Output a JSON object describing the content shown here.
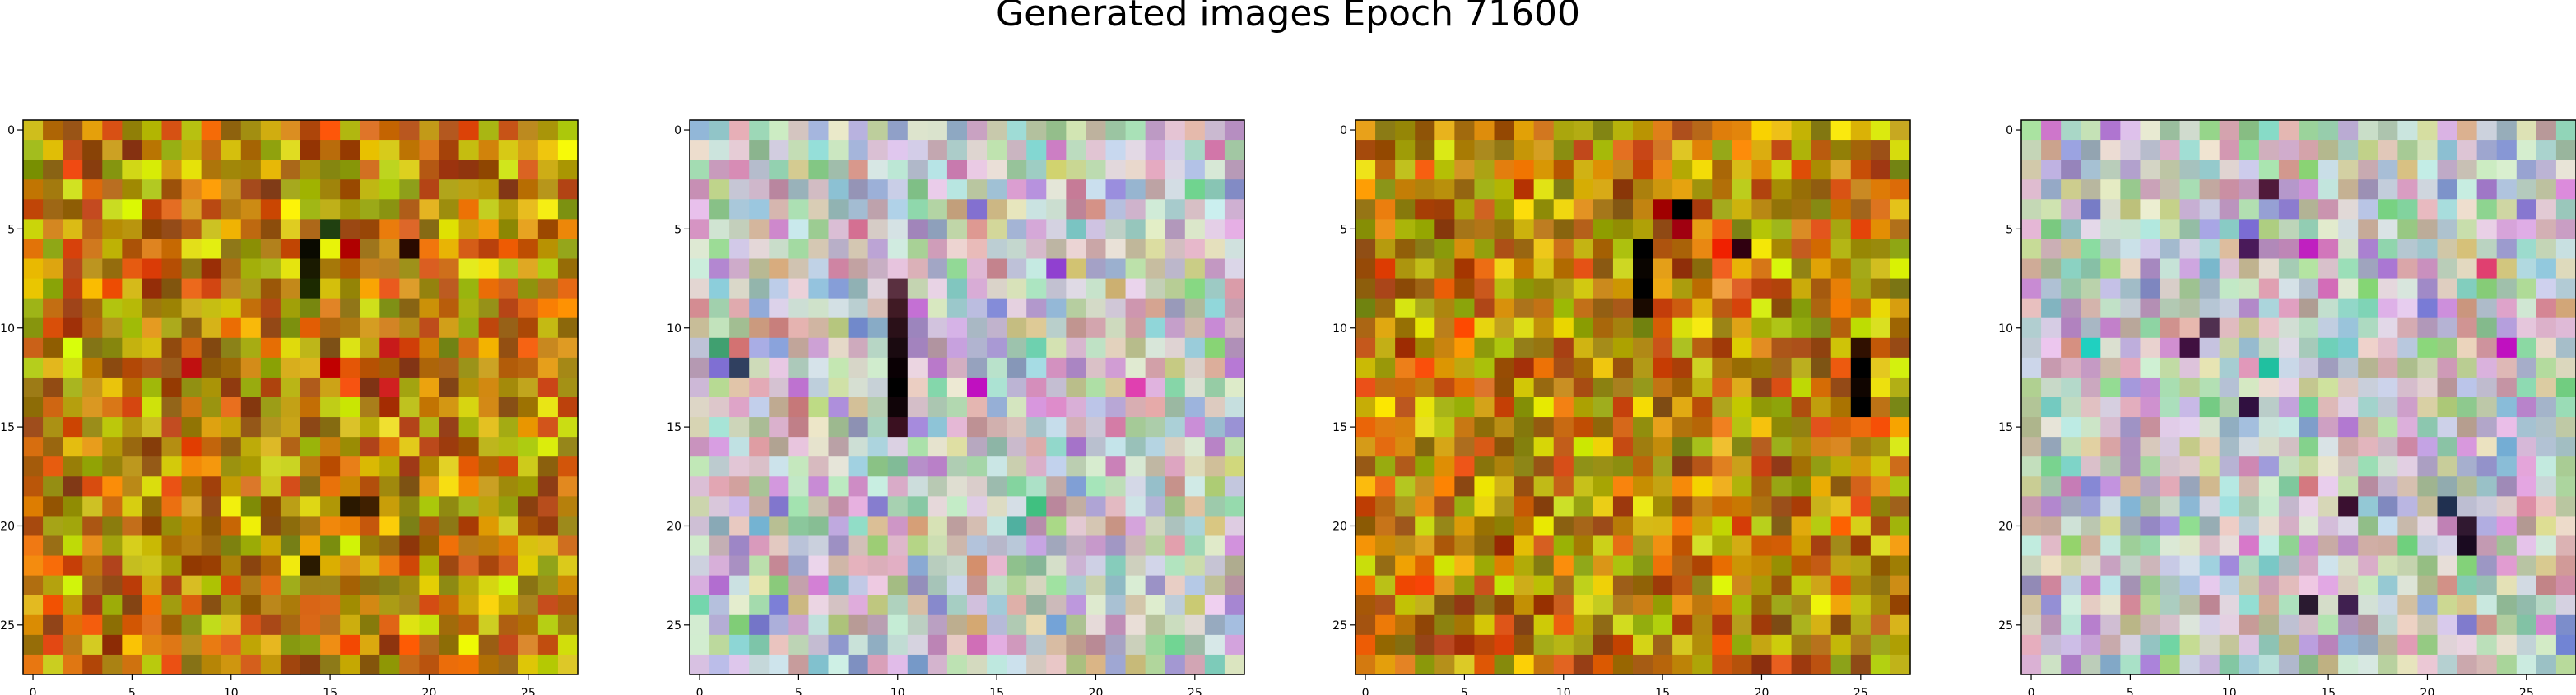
{
  "figure": {
    "title": "Generated images Epoch 71600"
  },
  "chart_data": [
    {
      "type": "heatmap",
      "grid_size": 28,
      "palette": "autumn-noise",
      "xticks": [
        "0",
        "5",
        "10",
        "15",
        "20",
        "25"
      ],
      "yticks": [
        "0",
        "5",
        "10",
        "15",
        "20",
        "25"
      ],
      "xlim": [
        -0.5,
        27.5
      ],
      "ylim": [
        27.5,
        -0.5
      ],
      "highlight_cells": [
        [
          6,
          14
        ],
        [
          7,
          14
        ],
        [
          6,
          19
        ],
        [
          8,
          14
        ],
        [
          15,
          18
        ],
        [
          12,
          8
        ],
        [
          5,
          15
        ],
        [
          6,
          16
        ],
        [
          12,
          15
        ],
        [
          11,
          18
        ],
        [
          13,
          18
        ],
        [
          19,
          16
        ],
        [
          19,
          17
        ],
        [
          22,
          14
        ]
      ],
      "highlight_colors": [
        "#0a0a00",
        "#1a1a00",
        "#2a0a00",
        "#1c2a00",
        "#f0e030",
        "#c01010",
        "#204010",
        "#b00000",
        "#c00000",
        "#c81a1a",
        "#d02020",
        "#2a1800",
        "#402000",
        "#2a1a00"
      ]
    },
    {
      "type": "heatmap",
      "grid_size": 28,
      "palette": "pastel-noise",
      "xticks": [
        "0",
        "5",
        "10",
        "15",
        "20",
        "25"
      ],
      "yticks": [
        "0",
        "5",
        "10",
        "15",
        "20",
        "25"
      ],
      "xlim": [
        -0.5,
        27.5
      ],
      "ylim": [
        27.5,
        -0.5
      ],
      "highlight_cells": [
        [
          8,
          10
        ],
        [
          9,
          10
        ],
        [
          10,
          10
        ],
        [
          11,
          10
        ],
        [
          12,
          10
        ],
        [
          13,
          10
        ],
        [
          14,
          10
        ],
        [
          15,
          10
        ],
        [
          13,
          14
        ],
        [
          13,
          22
        ],
        [
          7,
          18
        ],
        [
          11,
          1
        ],
        [
          12,
          2
        ],
        [
          19,
          17
        ],
        [
          20,
          16
        ]
      ],
      "highlight_colors": [
        "#5a3040",
        "#401a24",
        "#2a1018",
        "#1a0a10",
        "#0a0004",
        "#000000",
        "#100408",
        "#3a1020",
        "#c010c0",
        "#e040b0",
        "#9040d0",
        "#40a070",
        "#304060",
        "#40c080",
        "#50b0a0"
      ]
    },
    {
      "type": "heatmap",
      "grid_size": 28,
      "palette": "autumn-noise",
      "xticks": [
        "0",
        "5",
        "10",
        "15",
        "20",
        "25"
      ],
      "yticks": [
        "0",
        "5",
        "10",
        "15",
        "20",
        "25"
      ],
      "xlim": [
        -0.5,
        27.5
      ],
      "ylim": [
        27.5,
        -0.5
      ],
      "highlight_cells": [
        [
          6,
          14
        ],
        [
          7,
          14
        ],
        [
          8,
          14
        ],
        [
          9,
          14
        ],
        [
          4,
          15
        ],
        [
          4,
          16
        ],
        [
          5,
          16
        ],
        [
          6,
          18
        ],
        [
          7,
          18
        ],
        [
          8,
          18
        ],
        [
          15,
          18
        ],
        [
          16,
          18
        ],
        [
          17,
          18
        ],
        [
          18,
          18
        ],
        [
          12,
          25
        ],
        [
          13,
          25
        ],
        [
          14,
          25
        ],
        [
          11,
          25
        ],
        [
          6,
          19
        ]
      ],
      "highlight_colors": [
        "#000000",
        "#0a0500",
        "#000000",
        "#1a0a00",
        "#a00000",
        "#000000",
        "#a00010",
        "#f02000",
        "#f06020",
        "#f0a040",
        "#f08020",
        "#f0c030",
        "#e08020",
        "#f0b020",
        "#000000",
        "#100500",
        "#000000",
        "#301000",
        "#300010"
      ]
    },
    {
      "type": "heatmap",
      "grid_size": 28,
      "palette": "pastel-noise",
      "xticks": [
        "0",
        "5",
        "10",
        "15",
        "20",
        "25"
      ],
      "yticks": [
        "0",
        "5",
        "10",
        "15",
        "20",
        "25"
      ],
      "xlim": [
        -0.5,
        27.5
      ],
      "ylim": [
        27.5,
        -0.5
      ],
      "highlight_cells": [
        [
          6,
          11
        ],
        [
          6,
          14
        ],
        [
          7,
          23
        ],
        [
          11,
          3
        ],
        [
          11,
          24
        ],
        [
          10,
          9
        ],
        [
          11,
          8
        ],
        [
          12,
          12
        ],
        [
          14,
          11
        ],
        [
          19,
          16
        ],
        [
          19,
          21
        ],
        [
          20,
          22
        ],
        [
          21,
          22
        ],
        [
          24,
          14
        ],
        [
          24,
          16
        ],
        [
          3,
          12
        ]
      ],
      "highlight_colors": [
        "#4a1a5a",
        "#c020c0",
        "#e04070",
        "#20d0c0",
        "#c010c0",
        "#503050",
        "#401040",
        "#20c0a0",
        "#301040",
        "#3a1030",
        "#203050",
        "#301830",
        "#1a0a20",
        "#2a1a30",
        "#402050",
        "#501a3a"
      ]
    }
  ]
}
